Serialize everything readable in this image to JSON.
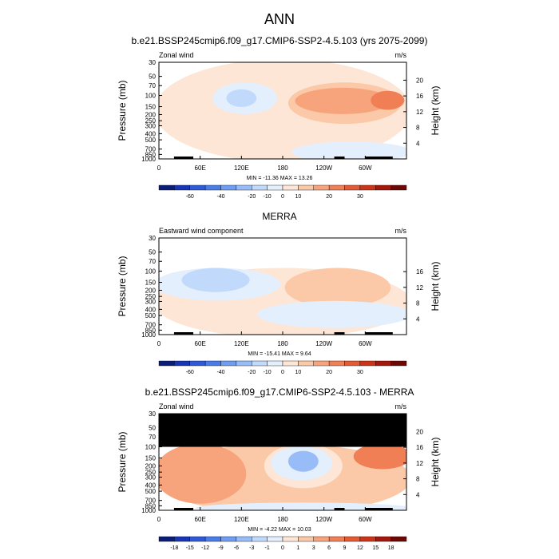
{
  "title": "ANN",
  "chart_data": [
    {
      "type": "heatmap",
      "title": "b.e21.BSSP245cmip6.f09_g17.CMIP6-SSP2-4.5.103 (yrs 2075-2099)",
      "left_label": "Zonal wind",
      "units": "m/s",
      "ylabel": "Pressure (mb)",
      "y2label": "Height (km)",
      "pressure_ticks": [
        "30",
        "50",
        "70",
        "100",
        "150",
        "200",
        "250",
        "300",
        "400",
        "500",
        "700",
        "850",
        "1000"
      ],
      "height_ticks": [
        "20",
        "16",
        "12",
        "8",
        "4"
      ],
      "x_ticks": [
        "0",
        "60E",
        "120E",
        "180",
        "120W",
        "60W"
      ],
      "stats": "MIN = -11.36  MAX = 13.26",
      "colorbar_labels": [
        "-60",
        "-40",
        "-20",
        "-10",
        "0",
        "10",
        "20",
        "30"
      ],
      "colorbar_colors": [
        "#0a1e78",
        "#1735b4",
        "#2e5ad8",
        "#4a7ce8",
        "#6f9df2",
        "#97bcf7",
        "#c1d9fb",
        "#e4effd",
        "#fde6d6",
        "#fbc8a8",
        "#f7a37c",
        "#f07f56",
        "#e35a34",
        "#cc3418",
        "#a4180b",
        "#6e0804"
      ],
      "contour_fields": [
        {
          "range": "0 to 5 m/s",
          "lon": [
            0,
            360
          ],
          "p": [
            30,
            1000
          ],
          "color": "#fde6d6"
        },
        {
          "range": "0 to -5 m/s",
          "lon": [
            85,
            165
          ],
          "p": [
            70,
            175
          ],
          "color": "#e4effd"
        },
        {
          "range": "-5 to -10 m/s",
          "lon": [
            105,
            135
          ],
          "p": [
            90,
            135
          ],
          "color": "#c1d9fb"
        },
        {
          "range": "5 to 10 m/s",
          "lon": [
            195,
            345
          ],
          "p": [
            70,
            250
          ],
          "color": "#fbc8a8"
        },
        {
          "range": "10 to 15 m/s",
          "lon": [
            205,
            330
          ],
          "p": [
            85,
            175
          ],
          "color": "#f7a37c"
        },
        {
          "range": "10 to 15 m/s",
          "lon": [
            315,
            350
          ],
          "p": [
            95,
            150
          ],
          "color": "#f07f56"
        },
        {
          "range": "0 to -5 m/s",
          "lon": [
            200,
            360
          ],
          "p": [
            600,
            1000
          ],
          "color": "#e4effd"
        }
      ]
    },
    {
      "type": "heatmap",
      "title": "MERRA",
      "left_label": "Eastward wind component",
      "units": "m/s",
      "ylabel": "Pressure (mb)",
      "y2label": "Height (km)",
      "pressure_ticks": [
        "30",
        "50",
        "70",
        "100",
        "150",
        "200",
        "250",
        "300",
        "400",
        "500",
        "700",
        "850",
        "1000"
      ],
      "height_ticks": [
        "16",
        "12",
        "8",
        "4"
      ],
      "x_ticks": [
        "0",
        "60E",
        "120E",
        "180",
        "120W",
        "60W"
      ],
      "stats": "MIN = -15.41  MAX =  9.64",
      "colorbar_labels": [
        "-60",
        "-40",
        "-20",
        "-10",
        "0",
        "10",
        "20",
        "30"
      ],
      "colorbar_colors": [
        "#0a1e78",
        "#1735b4",
        "#2e5ad8",
        "#4a7ce8",
        "#6f9df2",
        "#97bcf7",
        "#c1d9fb",
        "#e4effd",
        "#fde6d6",
        "#fbc8a8",
        "#f7a37c",
        "#f07f56",
        "#e35a34",
        "#cc3418",
        "#a4180b",
        "#6e0804"
      ],
      "contour_fields": [
        {
          "range": "0 to 5 m/s",
          "lon": [
            0,
            360
          ],
          "p": [
            100,
            1000
          ],
          "color": "#fde6d6"
        },
        {
          "range": "0 to -5 m/s",
          "lon": [
            0,
            170
          ],
          "p": [
            100,
            260
          ],
          "color": "#e4effd"
        },
        {
          "range": "-5 to -10 m/s",
          "lon": [
            40,
            125
          ],
          "p": [
            100,
            190
          ],
          "color": "#c1d9fb"
        },
        {
          "range": "5 to 10 m/s",
          "lon": [
            190,
            330
          ],
          "p": [
            100,
            330
          ],
          "color": "#fbc8a8"
        },
        {
          "range": "0 to -5 m/s",
          "lon": [
            150,
            360
          ],
          "p": [
            330,
            700
          ],
          "color": "#e4effd"
        }
      ]
    },
    {
      "type": "heatmap",
      "title": "b.e21.BSSP245cmip6.f09_g17.CMIP6-SSP2-4.5.103 - MERRA",
      "left_label": "Zonal wind",
      "units": "m/s",
      "ylabel": "Pressure (mb)",
      "y2label": "Height (km)",
      "pressure_ticks": [
        "30",
        "50",
        "70",
        "100",
        "150",
        "200",
        "250",
        "300",
        "400",
        "500",
        "700",
        "850",
        "1000"
      ],
      "height_ticks": [
        "20",
        "16",
        "12",
        "8",
        "4"
      ],
      "x_ticks": [
        "0",
        "60E",
        "120E",
        "180",
        "120W",
        "60W"
      ],
      "stats": "MIN = -4.22  MAX = 10.03",
      "colorbar_labels": [
        "-18",
        "-15",
        "-12",
        "-9",
        "-6",
        "-3",
        "-1",
        "0",
        "1",
        "3",
        "6",
        "9",
        "12",
        "15",
        "18"
      ],
      "colorbar_colors": [
        "#0a1e78",
        "#1735b4",
        "#2e5ad8",
        "#4a7ce8",
        "#6f9df2",
        "#97bcf7",
        "#c1d9fb",
        "#e4effd",
        "#fde6d6",
        "#fbc8a8",
        "#f7a37c",
        "#f07f56",
        "#e35a34",
        "#cc3418",
        "#a4180b",
        "#6e0804"
      ],
      "contour_fields": [
        {
          "range": "1 to 3 m/s",
          "lon": [
            0,
            360
          ],
          "p": [
            100,
            1000
          ],
          "color": "#fbc8a8"
        },
        {
          "range": "3 to 6 m/s",
          "lon": [
            0,
            120
          ],
          "p": [
            100,
            700
          ],
          "color": "#f7a37c"
        },
        {
          "range": "0 to 1 m/s",
          "lon": [
            160,
            260
          ],
          "p": [
            100,
            400
          ],
          "color": "#fde6d6"
        },
        {
          "range": "-1 to 0 m/s",
          "lon": [
            170,
            245
          ],
          "p": [
            110,
            300
          ],
          "color": "#e4effd"
        },
        {
          "range": "-3 to -1 m/s",
          "lon": [
            195,
            225
          ],
          "p": [
            130,
            220
          ],
          "color": "#97bcf7"
        },
        {
          "range": "3 to 6 m/s",
          "lon": [
            290,
            360
          ],
          "p": [
            100,
            200
          ],
          "color": "#f07f56"
        },
        {
          "range": "0 to -1 m/s",
          "lon": [
            60,
            360
          ],
          "p": [
            850,
            1000
          ],
          "color": "#e4effd"
        }
      ],
      "missing_region": {
        "p": [
          30,
          100
        ],
        "color": "#000000"
      }
    }
  ]
}
